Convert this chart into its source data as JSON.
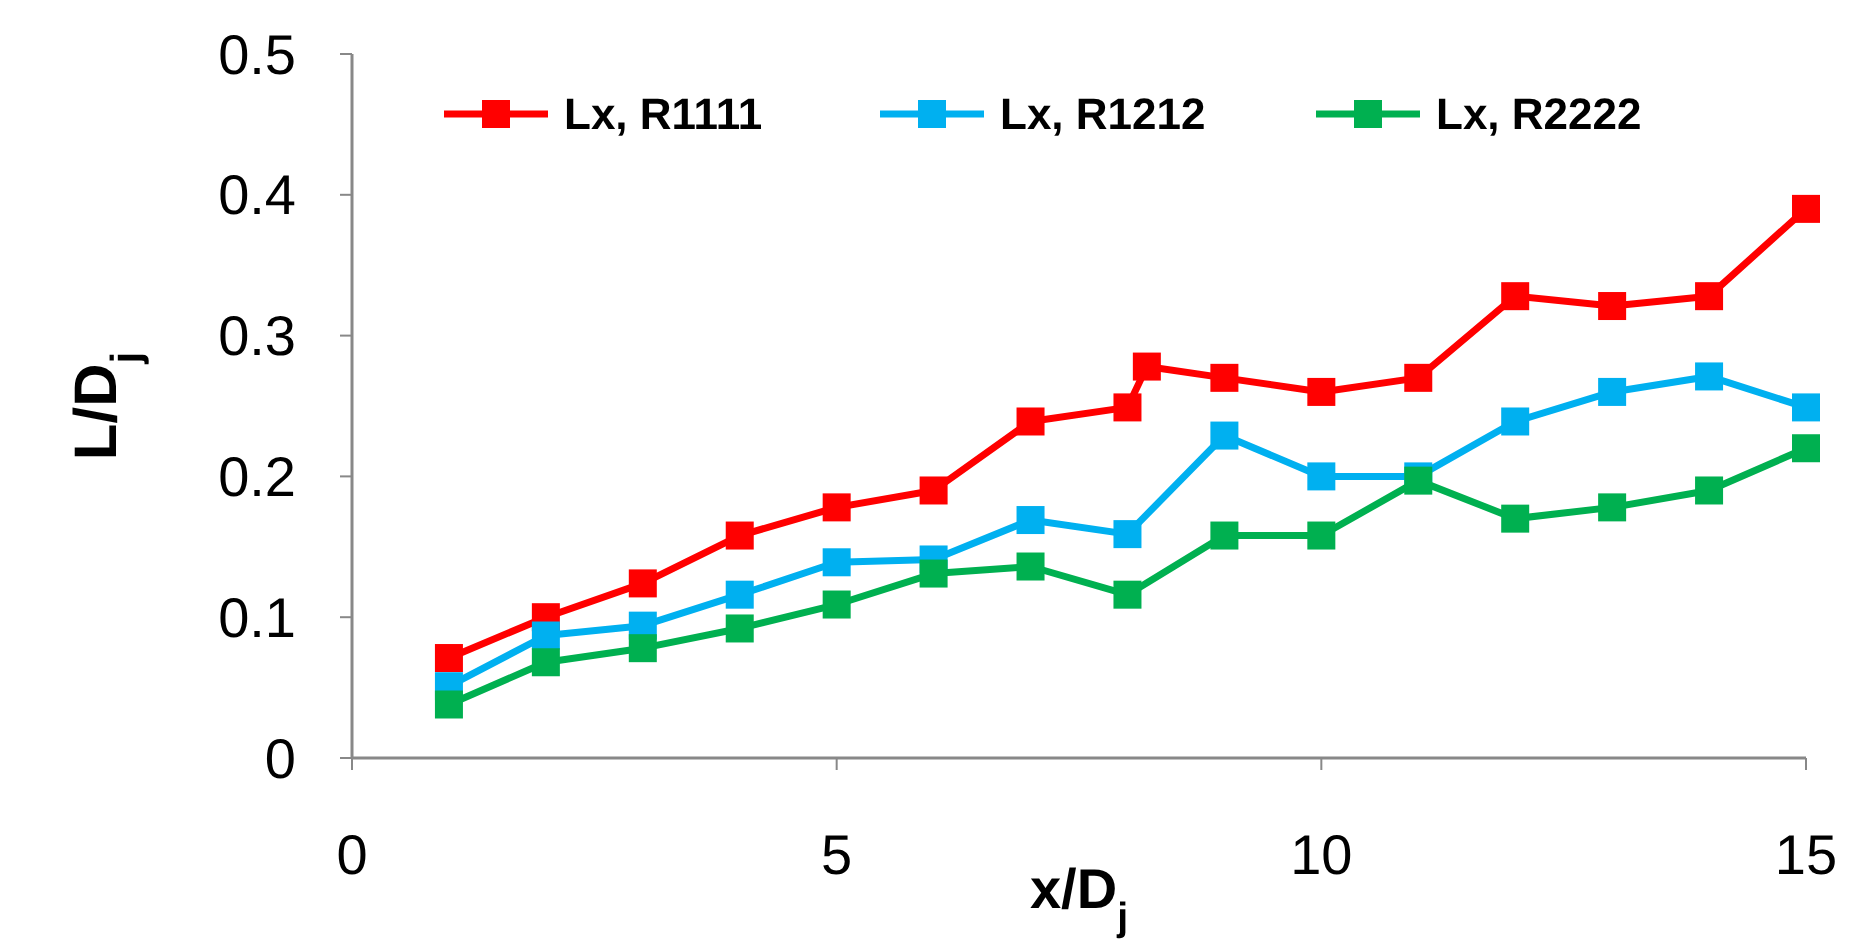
{
  "chart_data": {
    "type": "line",
    "xlabel": "x/D$_{j}$",
    "ylabel": "L/D$_{j}$",
    "xlim": [
      0,
      15
    ],
    "xticks": [
      0,
      5,
      10,
      15
    ],
    "ylim": [
      0,
      0.5
    ],
    "yticks": [
      0,
      0.1,
      0.2,
      0.3,
      0.4,
      0.5
    ],
    "grid": false,
    "legend": "top",
    "marker": "square",
    "line_style": "solid",
    "series": [
      {
        "name": "Lx, R1111",
        "color": "#ff0000",
        "x": [
          1,
          2,
          3,
          4,
          5,
          6,
          7,
          8,
          8.2,
          9,
          10,
          11,
          12,
          13,
          14,
          15
        ],
        "values": [
          0.071,
          0.1,
          0.124,
          0.158,
          0.178,
          0.19,
          0.239,
          0.249,
          0.278,
          0.27,
          0.26,
          0.27,
          0.328,
          0.321,
          0.328,
          0.39
        ]
      },
      {
        "name": "Lx, R1212",
        "color": "#00b0f0",
        "x": [
          1,
          2,
          3,
          4,
          5,
          6,
          7,
          8,
          9,
          10,
          11,
          12,
          13,
          14,
          15
        ],
        "values": [
          0.051,
          0.087,
          0.094,
          0.116,
          0.139,
          0.141,
          0.169,
          0.159,
          0.229,
          0.2,
          0.2,
          0.239,
          0.26,
          0.271,
          0.249
        ]
      },
      {
        "name": "Lx, R2222",
        "color": "#00b050",
        "x": [
          1,
          2,
          3,
          4,
          5,
          6,
          7,
          8,
          9,
          10,
          11,
          12,
          13,
          14,
          15
        ],
        "values": [
          0.038,
          0.068,
          0.078,
          0.092,
          0.109,
          0.131,
          0.136,
          0.116,
          0.158,
          0.158,
          0.197,
          0.17,
          0.178,
          0.19,
          0.22
        ]
      }
    ]
  }
}
